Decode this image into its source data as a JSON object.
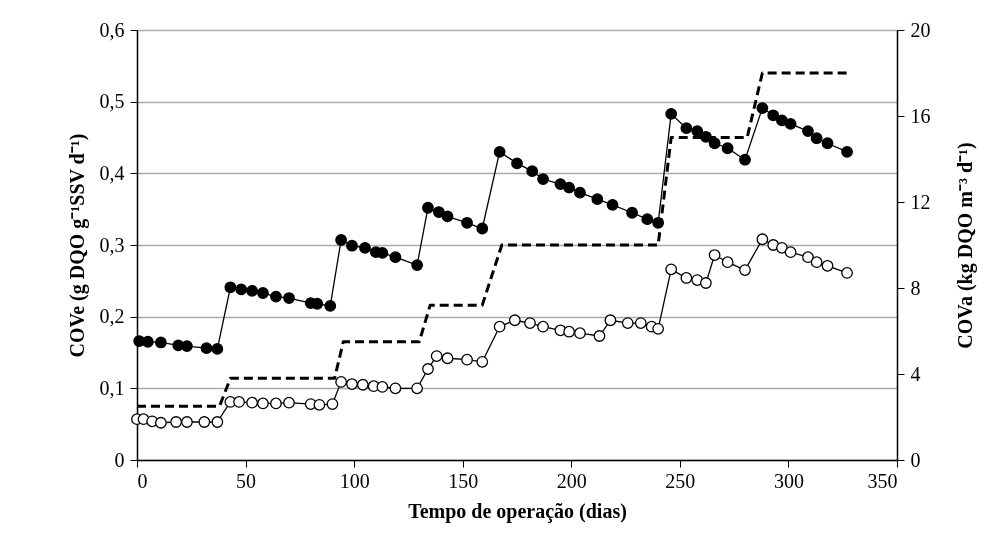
{
  "chart_data": {
    "type": "line",
    "xlabel": "Tempo de operação (dias)",
    "ylabel": "COVe (g DQO g⁻¹SSV d⁻¹)",
    "y2label": "COVa (kg DQO m⁻³ d⁻¹)",
    "xlim": [
      0,
      350
    ],
    "xticks": [
      0,
      50,
      100,
      150,
      200,
      250,
      300,
      350
    ],
    "ylim": [
      0,
      0.6
    ],
    "yticks": [
      0,
      {
        "value": 0.1,
        "label": "0,1"
      },
      {
        "value": 0.2,
        "label": "0,2"
      },
      {
        "value": 0.3,
        "label": "0,3"
      },
      {
        "value": 0.4,
        "label": "0,4"
      },
      {
        "value": 0.5,
        "label": "0,5"
      },
      {
        "value": 0.6,
        "label": "0,6"
      }
    ],
    "y2lim": [
      0,
      20
    ],
    "y2ticks": [
      0,
      4,
      8,
      12,
      16,
      20
    ],
    "grid": "y",
    "series": [
      {
        "color": "#000000",
        "marker": "circle",
        "x": [
          1,
          5,
          11,
          19,
          23,
          32,
          37,
          43,
          48,
          53,
          58,
          64,
          70,
          80,
          83,
          89,
          94,
          99,
          105,
          110,
          113,
          119,
          129,
          134,
          139,
          143,
          152,
          159,
          167,
          175,
          182,
          187,
          195,
          199,
          204,
          212,
          219,
          228,
          235,
          240,
          246,
          253,
          258,
          262,
          266,
          272,
          280,
          288,
          293,
          297,
          301,
          309,
          313,
          318,
          327
        ],
        "values": [
          0.166,
          0.165,
          0.164,
          0.16,
          0.159,
          0.156,
          0.155,
          0.241,
          0.238,
          0.236,
          0.233,
          0.228,
          0.226,
          0.219,
          0.218,
          0.215,
          0.307,
          0.299,
          0.296,
          0.29,
          0.289,
          0.283,
          0.272,
          0.352,
          0.346,
          0.34,
          0.331,
          0.323,
          0.43,
          0.414,
          0.403,
          0.392,
          0.385,
          0.38,
          0.373,
          0.364,
          0.356,
          0.345,
          0.336,
          0.331,
          0.483,
          0.463,
          0.459,
          0.451,
          0.442,
          0.435,
          0.419,
          0.491,
          0.481,
          0.474,
          0.469,
          0.459,
          0.449,
          0.442,
          0.43
        ]
      },
      {
        "color": "#ffffff",
        "marker": "circle",
        "x": [
          0,
          3,
          7,
          11,
          18,
          23,
          31,
          37,
          43,
          47,
          53,
          58,
          64,
          70,
          80,
          84,
          90,
          94,
          99,
          104,
          109,
          113,
          119,
          129,
          134,
          138,
          143,
          152,
          159,
          167,
          174,
          181,
          187,
          195,
          199,
          204,
          213,
          218,
          226,
          232,
          237,
          240,
          246,
          253,
          258,
          262,
          266,
          272,
          280,
          288,
          293,
          297,
          301,
          309,
          313,
          318,
          327
        ],
        "values": [
          0.057,
          0.057,
          0.054,
          0.052,
          0.053,
          0.053,
          0.053,
          0.053,
          0.081,
          0.081,
          0.08,
          0.079,
          0.079,
          0.08,
          0.078,
          0.077,
          0.078,
          0.109,
          0.106,
          0.105,
          0.103,
          0.102,
          0.1,
          0.1,
          0.127,
          0.145,
          0.142,
          0.14,
          0.137,
          0.186,
          0.195,
          0.191,
          0.186,
          0.181,
          0.179,
          0.177,
          0.173,
          0.195,
          0.191,
          0.191,
          0.186,
          0.183,
          0.266,
          0.254,
          0.251,
          0.247,
          0.286,
          0.276,
          0.265,
          0.308,
          0.3,
          0.296,
          0.29,
          0.283,
          0.276,
          0.271,
          0.261
        ]
      },
      {
        "color": "#000000",
        "marker": "none",
        "line_style": "dashed",
        "axis": "y2",
        "x": [
          0,
          38,
          43,
          91,
          95,
          130,
          135,
          159,
          168,
          240,
          246,
          281,
          288,
          328
        ],
        "values": [
          2.5,
          2.5,
          3.8,
          3.8,
          5.5,
          5.5,
          7.2,
          7.2,
          10,
          10,
          15,
          15,
          18,
          18
        ]
      }
    ]
  }
}
